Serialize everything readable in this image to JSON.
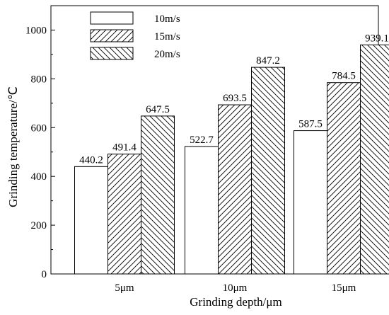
{
  "chart_data": {
    "type": "bar",
    "title": "",
    "xlabel": "Grinding depth/μm",
    "ylabel": "Grinding temperature/℃",
    "categories": [
      "5μm",
      "10μm",
      "15μm"
    ],
    "ylim": [
      0,
      1100
    ],
    "yticks": [
      0,
      200,
      400,
      600,
      800,
      1000
    ],
    "grid": false,
    "legend_position": "top-left",
    "series": [
      {
        "name": "10m/s",
        "fill": "plain",
        "values": [
          440.2,
          522.7,
          587.5
        ],
        "labels": [
          "440.2",
          "522.7",
          "587.5"
        ]
      },
      {
        "name": "15m/s",
        "fill": "forward-hatch",
        "values": [
          491.4,
          693.5,
          784.5
        ],
        "labels": [
          "491.4",
          "693.5",
          "784.5"
        ]
      },
      {
        "name": "20m/s",
        "fill": "backward-hatch",
        "values": [
          647.5,
          847.2,
          939.1
        ],
        "labels": [
          "647.5",
          "847.2",
          "939.1"
        ]
      }
    ],
    "colors": {
      "bar_stroke": "#000000",
      "bar_fill": "#ffffff",
      "hatch": "#000000"
    }
  }
}
